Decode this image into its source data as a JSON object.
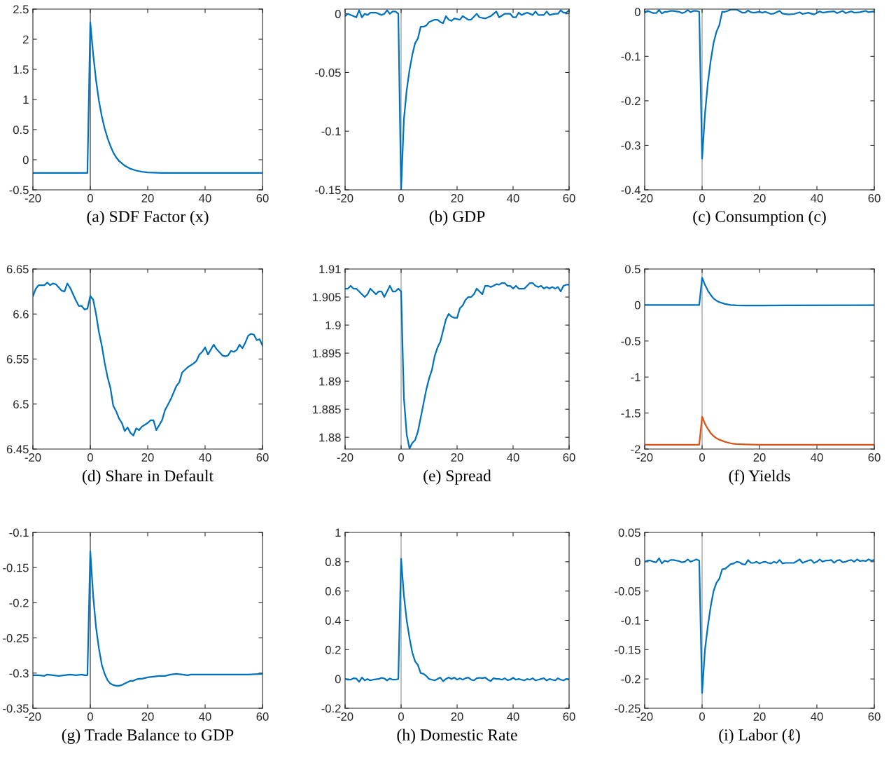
{
  "chart_data": [
    {
      "type": "line",
      "xlabel": "(a) SDF Factor (x)",
      "xlim": [
        -20,
        60
      ],
      "xticks": [
        -20,
        0,
        20,
        40,
        60
      ],
      "ylim": [
        -0.5,
        2.5
      ],
      "yticks": [
        -0.5,
        0,
        0.5,
        1,
        1.5,
        2,
        2.5
      ],
      "ref_lines": [
        {
          "axis": "x",
          "value": 0,
          "color": "#262626"
        }
      ],
      "series": [
        {
          "color": "#0072bd",
          "x": [
            -20,
            -1,
            0,
            1,
            2,
            3,
            4,
            5,
            6,
            7,
            8,
            9,
            10,
            12,
            14,
            16,
            18,
            20,
            25,
            30,
            40,
            50,
            60
          ],
          "values": [
            -0.22,
            -0.22,
            2.28,
            1.75,
            1.32,
            0.98,
            0.72,
            0.52,
            0.36,
            0.23,
            0.12,
            0.04,
            -0.02,
            -0.1,
            -0.15,
            -0.18,
            -0.2,
            -0.21,
            -0.22,
            -0.22,
            -0.22,
            -0.22,
            -0.22
          ]
        }
      ]
    },
    {
      "type": "line",
      "xlabel": "(b) GDP",
      "xlim": [
        -20,
        60
      ],
      "xticks": [
        -20,
        0,
        20,
        40,
        60
      ],
      "ylim": [
        -0.15,
        0.004
      ],
      "yticks": [
        -0.15,
        -0.1,
        -0.05,
        0
      ],
      "ref_lines": [
        {
          "axis": "x",
          "value": 0,
          "color": "#8c8c8c"
        }
      ],
      "series": [
        {
          "color": "#0072bd",
          "x": [
            -20,
            -19,
            -17,
            -16,
            -15,
            -14,
            -13,
            -12,
            -11,
            -9,
            -7,
            -6,
            -5,
            -4,
            -3,
            -2,
            -1,
            0,
            1,
            2,
            3,
            4,
            5,
            6,
            7,
            8,
            9,
            10,
            12,
            13,
            14,
            15,
            16,
            17,
            18,
            19,
            21,
            22,
            24,
            25,
            27,
            28,
            30,
            32,
            34,
            35,
            37,
            39,
            40,
            41,
            42,
            43,
            45,
            47,
            48,
            49,
            51,
            52,
            53,
            55,
            56,
            57,
            58,
            59,
            60
          ],
          "values": [
            -0.002,
            0.0,
            -0.002,
            -0.003,
            0.003,
            -0.003,
            0.0,
            -0.001,
            0.001,
            0.001,
            -0.001,
            0.0,
            0.003,
            0.0,
            0.002,
            0.002,
            0.0,
            -0.15,
            -0.09,
            -0.065,
            -0.048,
            -0.035,
            -0.025,
            -0.021,
            -0.011,
            -0.011,
            -0.01,
            -0.007,
            -0.005,
            -0.005,
            -0.007,
            -0.008,
            -0.002,
            -0.005,
            -0.006,
            -0.004,
            -0.005,
            -0.002,
            -0.005,
            -0.005,
            0.0,
            -0.003,
            -0.004,
            -0.002,
            0.002,
            -0.003,
            0.0,
            0.0,
            -0.003,
            -0.003,
            0.001,
            -0.001,
            0.001,
            -0.001,
            0.002,
            -0.001,
            -0.001,
            0.002,
            -0.001,
            0.0,
            0.0,
            0.003,
            0.001,
            0.001,
            0.003
          ]
        }
      ]
    },
    {
      "type": "line",
      "xlabel": "(c) Consumption (c)",
      "xlim": [
        -20,
        60
      ],
      "xticks": [
        -20,
        0,
        20,
        40,
        60
      ],
      "ylim": [
        -0.4,
        0.006
      ],
      "yticks": [
        -0.4,
        -0.3,
        -0.2,
        -0.1,
        0
      ],
      "ref_lines": [
        {
          "axis": "x",
          "value": 0,
          "color": "#8c8c8c"
        }
      ],
      "series": [
        {
          "color": "#0072bd",
          "x": [
            -20,
            -19,
            -17,
            -16,
            -15,
            -14,
            -13,
            -12,
            -11,
            -10,
            -8,
            -7,
            -6,
            -5,
            -4,
            -3,
            -2,
            -1,
            0,
            1,
            2,
            3,
            4,
            5,
            6,
            7,
            8,
            9,
            10,
            12,
            14,
            15,
            16,
            17,
            18,
            20,
            21,
            22,
            24,
            25,
            27,
            28,
            30,
            32,
            34,
            35,
            37,
            38,
            39,
            41,
            42,
            44,
            46,
            47,
            49,
            50,
            52,
            53,
            55,
            57,
            58,
            60
          ],
          "values": [
            -0.002,
            0.002,
            -0.003,
            -0.003,
            0.004,
            -0.004,
            0.0,
            0.0,
            0.002,
            0.002,
            0.0,
            -0.003,
            -0.001,
            0.004,
            -0.001,
            0.002,
            0.002,
            0.0,
            -0.33,
            -0.23,
            -0.16,
            -0.11,
            -0.07,
            -0.045,
            -0.03,
            0.0,
            0.0,
            0.002,
            0.005,
            0.005,
            -0.002,
            -0.002,
            0.003,
            -0.001,
            -0.002,
            0.0,
            -0.002,
            0.0,
            -0.005,
            -0.004,
            0.002,
            -0.004,
            -0.006,
            -0.005,
            -0.001,
            -0.005,
            -0.002,
            -0.004,
            -0.006,
            0.001,
            -0.002,
            0.0,
            0.001,
            -0.003,
            0.002,
            -0.003,
            0.001,
            -0.002,
            -0.001,
            0.002,
            -0.001,
            0.001
          ]
        }
      ]
    },
    {
      "type": "line",
      "xlabel": "(d) Share in Default",
      "xlim": [
        -20,
        60
      ],
      "xticks": [
        -20,
        0,
        20,
        40,
        60
      ],
      "ylim": [
        6.45,
        6.65
      ],
      "yticks": [
        6.45,
        6.5,
        6.55,
        6.6,
        6.65
      ],
      "ref_lines": [
        {
          "axis": "x",
          "value": 0,
          "color": "#262626"
        }
      ],
      "series": [
        {
          "color": "#0072bd",
          "x": [
            -20,
            -19,
            -18,
            -16,
            -15,
            -14,
            -13,
            -12,
            -10,
            -9,
            -8,
            -7,
            -6,
            -5,
            -4,
            -3,
            -2,
            -1,
            0,
            1,
            2,
            3,
            4,
            5,
            6,
            7,
            8,
            9,
            10,
            11,
            12,
            13,
            14,
            15,
            16,
            17,
            18,
            20,
            21,
            22,
            23,
            25,
            26,
            28,
            30,
            31,
            32,
            34,
            36,
            37,
            38,
            39,
            40,
            41,
            43,
            44,
            46,
            47,
            48,
            49,
            50,
            51,
            52,
            53,
            54,
            55,
            56,
            57,
            58,
            59,
            60
          ],
          "values": [
            6.62,
            6.628,
            6.632,
            6.632,
            6.635,
            6.632,
            6.634,
            6.633,
            6.626,
            6.625,
            6.634,
            6.629,
            6.622,
            6.615,
            6.609,
            6.609,
            6.605,
            6.606,
            6.62,
            6.616,
            6.6,
            6.58,
            6.565,
            6.546,
            6.53,
            6.518,
            6.498,
            6.492,
            6.484,
            6.479,
            6.47,
            6.474,
            6.468,
            6.465,
            6.473,
            6.471,
            6.475,
            6.479,
            6.482,
            6.482,
            6.471,
            6.482,
            6.493,
            6.505,
            6.52,
            6.524,
            6.535,
            6.541,
            6.545,
            6.548,
            6.555,
            6.558,
            6.563,
            6.555,
            6.566,
            6.561,
            6.554,
            6.553,
            6.554,
            6.559,
            6.558,
            6.56,
            6.566,
            6.562,
            6.568,
            6.576,
            6.578,
            6.577,
            6.571,
            6.572,
            6.565
          ]
        }
      ]
    },
    {
      "type": "line",
      "xlabel": "(e) Spread",
      "xlim": [
        -20,
        60
      ],
      "xticks": [
        -20,
        0,
        20,
        40,
        60
      ],
      "ylim": [
        1.8779,
        1.91
      ],
      "yticks": [
        1.88,
        1.885,
        1.89,
        1.895,
        1.9,
        1.905,
        1.91
      ],
      "ref_lines": [
        {
          "axis": "x",
          "value": 0,
          "color": "#8c8c8c"
        }
      ],
      "series": [
        {
          "color": "#0072bd",
          "x": [
            -20,
            -19,
            -18,
            -17,
            -16,
            -15,
            -14,
            -13,
            -12,
            -11,
            -10,
            -9,
            -8,
            -7,
            -6,
            -5,
            -4,
            -3,
            -2,
            -1,
            0,
            1,
            2,
            3,
            4,
            5,
            6,
            7,
            8,
            9,
            10,
            11,
            12,
            13,
            14,
            15,
            16,
            17,
            18,
            19,
            20,
            21,
            22,
            23,
            24,
            25,
            26,
            27,
            28,
            29,
            30,
            31,
            32,
            33,
            34,
            35,
            36,
            37,
            38,
            39,
            40,
            41,
            42,
            43,
            44,
            45,
            46,
            47,
            48,
            49,
            50,
            51,
            52,
            53,
            54,
            55,
            56,
            57,
            58,
            59,
            60
          ],
          "values": [
            1.9065,
            1.9065,
            1.907,
            1.9065,
            1.9065,
            1.906,
            1.9055,
            1.905,
            1.9055,
            1.9065,
            1.906,
            1.9055,
            1.906,
            1.906,
            1.905,
            1.906,
            1.907,
            1.906,
            1.906,
            1.9065,
            1.906,
            1.887,
            1.8805,
            1.878,
            1.879,
            1.8795,
            1.881,
            1.8835,
            1.886,
            1.8885,
            1.8905,
            1.892,
            1.8945,
            1.896,
            1.897,
            1.899,
            1.901,
            1.902,
            1.9015,
            1.9013,
            1.9013,
            1.903,
            1.9035,
            1.9045,
            1.905,
            1.905,
            1.9055,
            1.9065,
            1.906,
            1.9055,
            1.907,
            1.907,
            1.9068,
            1.907,
            1.9073,
            1.9072,
            1.9075,
            1.9075,
            1.907,
            1.907,
            1.9065,
            1.907,
            1.9065,
            1.9065,
            1.9065,
            1.907,
            1.9075,
            1.9075,
            1.907,
            1.9068,
            1.907,
            1.9065,
            1.9068,
            1.9065,
            1.9068,
            1.9065,
            1.9068,
            1.906,
            1.907,
            1.9072,
            1.9072
          ]
        }
      ]
    },
    {
      "type": "line",
      "xlabel": "(f) Yields",
      "xlim": [
        -20,
        60
      ],
      "xticks": [
        -20,
        0,
        20,
        40,
        60
      ],
      "ylim": [
        -2,
        0.5
      ],
      "yticks": [
        -2,
        -1.5,
        -1,
        -0.5,
        0,
        0.5
      ],
      "ref_lines": [
        {
          "axis": "x",
          "value": 0,
          "color": "#8c8c8c"
        }
      ],
      "series": [
        {
          "color": "#0072bd",
          "x": [
            -20,
            -1,
            0,
            1,
            2,
            3,
            4,
            5,
            6,
            8,
            10,
            12,
            15,
            20,
            30,
            60
          ],
          "values": [
            0.0,
            0.0,
            0.38,
            0.28,
            0.2,
            0.14,
            0.09,
            0.06,
            0.04,
            0.015,
            0.0,
            -0.005,
            -0.008,
            -0.008,
            -0.005,
            -0.003
          ]
        },
        {
          "color": "#d95319",
          "x": [
            -20,
            -1,
            0,
            1,
            2,
            3,
            4,
            5,
            6,
            8,
            10,
            12,
            15,
            20,
            60
          ],
          "values": [
            -1.94,
            -1.94,
            -1.55,
            -1.65,
            -1.72,
            -1.78,
            -1.82,
            -1.85,
            -1.87,
            -1.9,
            -1.92,
            -1.93,
            -1.935,
            -1.94,
            -1.94
          ]
        }
      ]
    },
    {
      "type": "line",
      "xlabel": "(g) Trade Balance to GDP",
      "xlim": [
        -20,
        60
      ],
      "xticks": [
        -20,
        0,
        20,
        40,
        60
      ],
      "ylim": [
        -0.35,
        -0.1
      ],
      "yticks": [
        -0.35,
        -0.3,
        -0.25,
        -0.2,
        -0.15,
        -0.1
      ],
      "ref_lines": [
        {
          "axis": "x",
          "value": 0,
          "color": "#262626"
        }
      ],
      "series": [
        {
          "color": "#0072bd",
          "x": [
            -20,
            -18,
            -16,
            -15,
            -13,
            -11,
            -9,
            -7,
            -5,
            -3,
            -2,
            -1,
            0,
            1,
            2,
            3,
            4,
            5,
            6,
            7,
            8,
            9,
            10,
            11,
            12,
            13,
            14,
            15,
            16,
            17,
            18,
            20,
            22,
            24,
            26,
            28,
            30,
            32,
            34,
            35,
            37,
            40,
            45,
            50,
            55,
            60
          ],
          "values": [
            -0.303,
            -0.303,
            -0.304,
            -0.302,
            -0.303,
            -0.304,
            -0.303,
            -0.302,
            -0.303,
            -0.302,
            -0.303,
            -0.303,
            -0.127,
            -0.19,
            -0.235,
            -0.265,
            -0.288,
            -0.301,
            -0.31,
            -0.315,
            -0.317,
            -0.318,
            -0.318,
            -0.317,
            -0.315,
            -0.313,
            -0.311,
            -0.311,
            -0.309,
            -0.308,
            -0.308,
            -0.306,
            -0.305,
            -0.304,
            -0.304,
            -0.302,
            -0.301,
            -0.302,
            -0.303,
            -0.302,
            -0.302,
            -0.302,
            -0.302,
            -0.302,
            -0.302,
            -0.301
          ]
        }
      ]
    },
    {
      "type": "line",
      "xlabel": "(h) Domestic Rate",
      "xlim": [
        -20,
        60
      ],
      "xticks": [
        -20,
        0,
        20,
        40,
        60
      ],
      "ylim": [
        -0.2,
        1
      ],
      "yticks": [
        -0.2,
        0,
        0.2,
        0.4,
        0.6,
        0.8,
        1
      ],
      "ref_lines": [
        {
          "axis": "x",
          "value": 0,
          "color": "#8c8c8c"
        }
      ],
      "series": [
        {
          "color": "#0072bd",
          "x": [
            -20,
            -19,
            -18,
            -17,
            -16,
            -15,
            -14,
            -13,
            -12,
            -11,
            -10,
            -8,
            -7,
            -6,
            -5,
            -4,
            -3,
            -2,
            -1,
            0,
            1,
            2,
            3,
            4,
            5,
            6,
            7,
            8,
            9,
            10,
            11,
            12,
            13,
            14,
            15,
            16,
            17,
            18,
            19,
            20,
            21,
            22,
            23,
            24,
            25,
            26,
            27,
            28,
            29,
            30,
            31,
            32,
            33,
            34,
            35,
            36,
            37,
            38,
            39,
            40,
            41,
            42,
            43,
            44,
            45,
            46,
            47,
            48,
            49,
            50,
            51,
            52,
            53,
            54,
            55,
            56,
            57,
            58,
            59,
            60
          ],
          "values": [
            0.0,
            -0.005,
            -0.005,
            0.005,
            0.003,
            -0.02,
            0.01,
            -0.01,
            0.0,
            -0.01,
            -0.005,
            0.0,
            0.008,
            0.003,
            -0.01,
            0.003,
            -0.005,
            -0.005,
            0.0,
            0.82,
            0.57,
            0.4,
            0.28,
            0.18,
            0.12,
            0.095,
            0.04,
            0.035,
            0.02,
            0.0,
            -0.005,
            -0.01,
            0.0,
            0.01,
            -0.015,
            0.0,
            0.01,
            0.0,
            0.01,
            -0.005,
            0.005,
            -0.005,
            0.005,
            0.01,
            -0.005,
            -0.01,
            0.005,
            0.008,
            0.005,
            0.01,
            -0.005,
            -0.015,
            0.005,
            0.0,
            0.0,
            -0.005,
            0.005,
            -0.008,
            -0.005,
            0.008,
            -0.005,
            0.0,
            -0.005,
            -0.01,
            0.0,
            -0.005,
            0.005,
            -0.01,
            -0.005,
            0.0,
            0.005,
            -0.01,
            0.0,
            -0.005,
            -0.01,
            0.005,
            -0.005,
            -0.01,
            0.0,
            -0.005
          ]
        }
      ]
    },
    {
      "type": "line",
      "xlabel": "(i) Labor (ℓ)",
      "xlim": [
        -20,
        60
      ],
      "xticks": [
        -20,
        0,
        20,
        40,
        60
      ],
      "ylim": [
        -0.25,
        0.05
      ],
      "yticks": [
        -0.25,
        -0.2,
        -0.15,
        -0.1,
        -0.05,
        0,
        0.05
      ],
      "ref_lines": [
        {
          "axis": "x",
          "value": 0,
          "color": "#8c8c8c"
        }
      ],
      "series": [
        {
          "color": "#0072bd",
          "x": [
            -20,
            -19,
            -18,
            -17,
            -16,
            -15,
            -14,
            -13,
            -12,
            -11,
            -10,
            -8,
            -7,
            -6,
            -5,
            -4,
            -3,
            -2,
            -1,
            0,
            1,
            2,
            3,
            4,
            5,
            6,
            7,
            8,
            9,
            10,
            11,
            12,
            13,
            14,
            15,
            16,
            17,
            18,
            19,
            20,
            21,
            22,
            23,
            24,
            25,
            26,
            27,
            28,
            29,
            31,
            32,
            33,
            34,
            35,
            36,
            37,
            38,
            39,
            40,
            41,
            42,
            43,
            44,
            45,
            46,
            47,
            48,
            49,
            50,
            51,
            52,
            53,
            54,
            55,
            56,
            57,
            58,
            59,
            60
          ],
          "values": [
            0.0,
            0.002,
            0.002,
            0.0,
            -0.001,
            0.006,
            -0.003,
            0.002,
            0.0,
            0.003,
            0.003,
            0.001,
            -0.001,
            0.0,
            0.004,
            0.0,
            0.002,
            0.004,
            0.002,
            -0.224,
            -0.15,
            -0.11,
            -0.076,
            -0.05,
            -0.036,
            -0.029,
            -0.013,
            -0.012,
            -0.008,
            -0.004,
            -0.003,
            0.0,
            -0.001,
            -0.004,
            -0.005,
            0.003,
            -0.002,
            -0.002,
            0.0,
            -0.003,
            -0.001,
            0.0,
            -0.002,
            -0.003,
            0.0,
            -0.002,
            0.003,
            -0.003,
            -0.002,
            -0.002,
            -0.002,
            0.001,
            0.004,
            -0.002,
            0.0,
            0.002,
            0.003,
            -0.002,
            0.0,
            0.004,
            0.0,
            0.002,
            0.002,
            0.003,
            -0.002,
            0.002,
            0.003,
            -0.001,
            0.0,
            0.002,
            0.003,
            0.0,
            0.004,
            0.001,
            0.002,
            0.001,
            0.004,
            0.002,
            0.003
          ]
        }
      ]
    }
  ]
}
